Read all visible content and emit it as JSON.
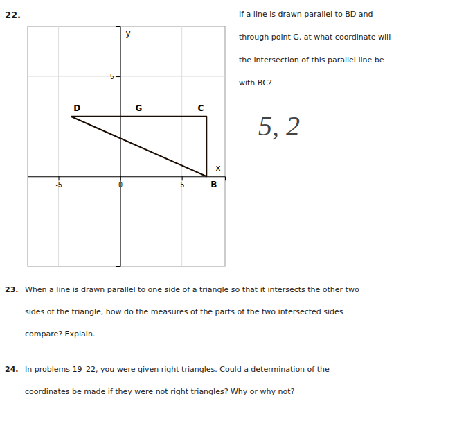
{
  "chart_data": {
    "type": "line",
    "x": [
      -4,
      7,
      7,
      -4
    ],
    "series": [
      {
        "values": [
          3,
          3,
          0,
          3
        ],
        "color": "#1a0a00"
      }
    ],
    "xlim": [
      -7.5,
      8.5
    ],
    "ylim": [
      -4.5,
      7.5
    ],
    "xticks": [
      -5,
      0,
      5
    ],
    "yticks": [
      5
    ],
    "grid": true,
    "xlabel": "x",
    "ylabel": "y",
    "annotations": [
      {
        "text": "D",
        "x": -4,
        "y": 3
      },
      {
        "text": "C",
        "x": 7,
        "y": 3
      },
      {
        "text": "B",
        "x": 7,
        "y": 0
      },
      {
        "text": "G",
        "x": 1,
        "y": 3
      }
    ]
  },
  "questions": [
    {
      "number": "22.",
      "lines": [
        "If a line is drawn parallel to BD and",
        "through point G, at what coordinate will",
        "the intersection of this parallel line be",
        "with BC?"
      ]
    },
    {
      "number": "23.",
      "lines": [
        "When a line is drawn parallel to one side of a triangle so that it intersects the other two",
        "sides of the triangle, how do the measures of the parts of the two intersected sides",
        "compare? Explain."
      ]
    },
    {
      "number": "24.",
      "lines": [
        "In problems 19–22, you were given right triangles. Could a determination of the",
        "coordinates be made if they were not right triangles? Why or why not?"
      ]
    }
  ],
  "answer": "5, 2"
}
